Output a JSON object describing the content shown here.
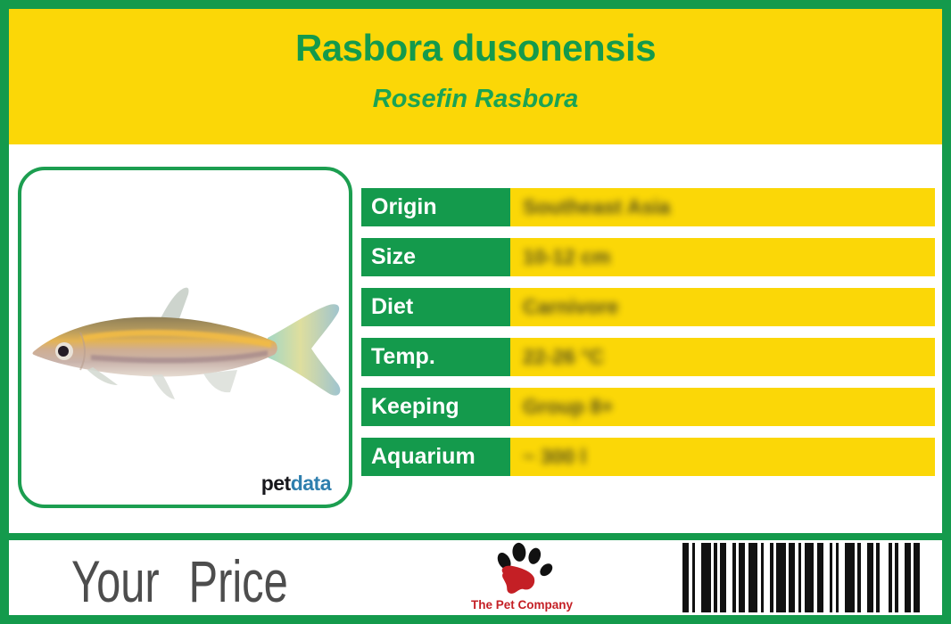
{
  "header": {
    "title": "Rasbora dusonensis",
    "subtitle": "Rosefin Rasbora"
  },
  "specs": [
    {
      "label": "Origin",
      "value": "Southeast Asia"
    },
    {
      "label": "Size",
      "value": "10-12 cm"
    },
    {
      "label": "Diet",
      "value": "Carnivore"
    },
    {
      "label": "Temp.",
      "value": "22-26 °C"
    },
    {
      "label": "Keeping",
      "value": "Group 8+"
    },
    {
      "label": "Aquarium",
      "value": "~ 300 l"
    }
  ],
  "photo": {
    "alt": "Rasbora dusonensis fish, side view",
    "logo_pet": "pet",
    "logo_data": "data"
  },
  "footer": {
    "price_label": "Your Price",
    "brand_name": "The Pet Company"
  },
  "barcode_pattern": "2112311122112131121131211131221112311221131112212",
  "colors": {
    "green": "#149A4C",
    "yellow": "#FBD707",
    "price_gray": "#4D4D4D",
    "brand_red": "#C41F25",
    "petdata_blue": "#2F7FAE",
    "petdata_dark": "#17171C",
    "value_ink": "#3A3A22"
  }
}
